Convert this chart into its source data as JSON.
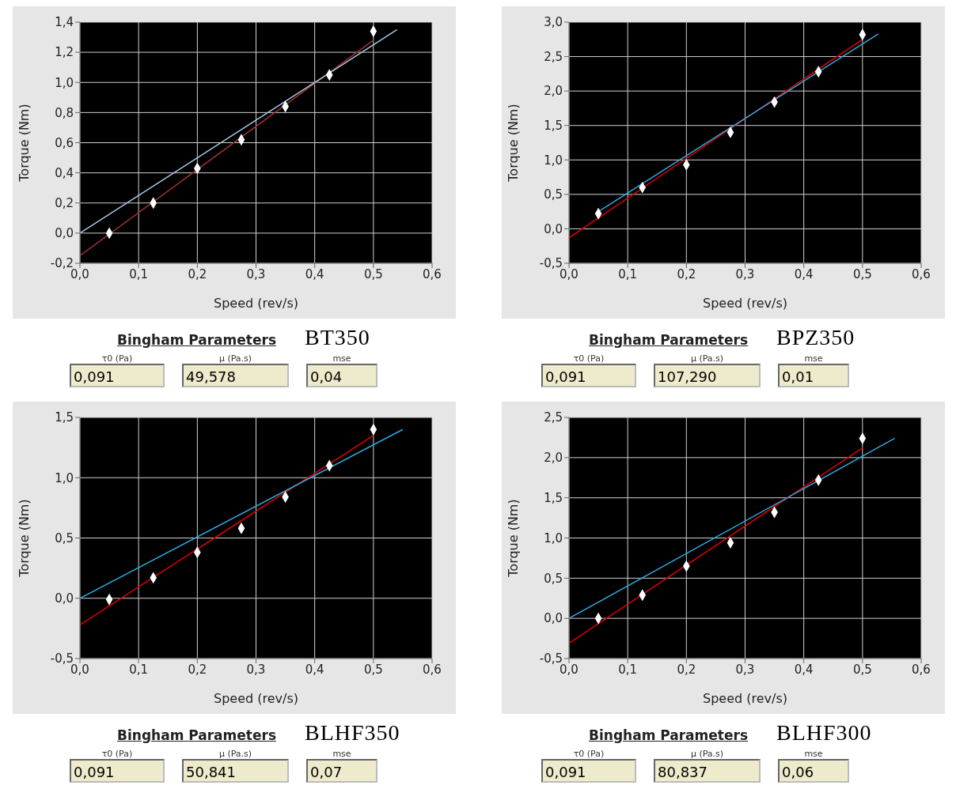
{
  "chart_data": [
    {
      "type": "scatter",
      "xlabel": "Speed (rev/s)",
      "ylabel": "Torque (Nm)",
      "xlim": [
        0,
        0.6
      ],
      "xticks": [
        {
          "value": 0,
          "label": "0,0"
        },
        {
          "value": 0.1,
          "label": "0,1"
        },
        {
          "value": 0.2,
          "label": "0,2"
        },
        {
          "value": 0.3,
          "label": "0,3"
        },
        {
          "value": 0.4,
          "label": "0,4"
        },
        {
          "value": 0.5,
          "label": "0,5"
        },
        {
          "value": 0.6,
          "label": "0,6"
        }
      ],
      "ylim": [
        -0.2,
        1.4
      ],
      "yticks": [
        {
          "value": -0.2,
          "label": "-0,2"
        },
        {
          "value": 0,
          "label": "0,0"
        },
        {
          "value": 0.2,
          "label": "0,2"
        },
        {
          "value": 0.4,
          "label": "0,4"
        },
        {
          "value": 0.6,
          "label": "0,6"
        },
        {
          "value": 0.8,
          "label": "0,8"
        },
        {
          "value": 1,
          "label": "1,0"
        },
        {
          "value": 1.2,
          "label": "1,2"
        },
        {
          "value": 1.4,
          "label": "1,4"
        }
      ],
      "grid": true,
      "series": [
        {
          "type": "line",
          "marker": "none",
          "color": "#a03030",
          "x": [
            0,
            0.5
          ],
          "values": [
            -0.15,
            1.28
          ]
        },
        {
          "type": "line",
          "marker": "none",
          "color": "#a8c8e8",
          "x": [
            0,
            0.54
          ],
          "values": [
            0,
            1.35
          ]
        },
        {
          "marker": "diamond",
          "color": "#ffffff",
          "x": [
            0.05,
            0.125,
            0.2,
            0.275,
            0.35,
            0.425,
            0.5
          ],
          "values": [
            0,
            0.2,
            0.43,
            0.62,
            0.84,
            1.05,
            1.34
          ]
        }
      ],
      "annotations": [
        "Bingham Parameters",
        "BT350",
        "τ0 (Pa)",
        "0,091",
        "µ (Pa.s)",
        "49,578",
        "mse",
        "0,04"
      ]
    },
    {
      "type": "scatter",
      "xlabel": "Speed (rev/s)",
      "ylabel": "Torque (Nm)",
      "xlim": [
        0,
        0.6
      ],
      "xticks": [
        {
          "value": 0,
          "label": "0,0"
        },
        {
          "value": 0.1,
          "label": "0,1"
        },
        {
          "value": 0.2,
          "label": "0,2"
        },
        {
          "value": 0.3,
          "label": "0,3"
        },
        {
          "value": 0.4,
          "label": "0,4"
        },
        {
          "value": 0.5,
          "label": "0,5"
        },
        {
          "value": 0.6,
          "label": "0,6"
        }
      ],
      "ylim": [
        -0.5,
        3
      ],
      "yticks": [
        {
          "value": -0.5,
          "label": "-0,5"
        },
        {
          "value": 0,
          "label": "0,0"
        },
        {
          "value": 0.5,
          "label": "0,5"
        },
        {
          "value": 1,
          "label": "1,0"
        },
        {
          "value": 1.5,
          "label": "1,5"
        },
        {
          "value": 2,
          "label": "2,0"
        },
        {
          "value": 2.5,
          "label": "2,5"
        },
        {
          "value": 3,
          "label": "3,0"
        }
      ],
      "grid": true,
      "series": [
        {
          "type": "line",
          "marker": "none",
          "color": "#e00000",
          "x": [
            0,
            0.5
          ],
          "values": [
            -0.13,
            2.75
          ]
        },
        {
          "type": "line",
          "marker": "none",
          "color": "#30a8e0",
          "x": [
            0.05,
            0.527
          ],
          "values": [
            0.25,
            2.83
          ]
        },
        {
          "marker": "diamond",
          "color": "#ffffff",
          "x": [
            0.05,
            0.125,
            0.2,
            0.275,
            0.35,
            0.425,
            0.5
          ],
          "values": [
            0.22,
            0.6,
            0.93,
            1.4,
            1.84,
            2.28,
            2.82
          ]
        }
      ],
      "annotations": [
        "Bingham Parameters",
        "BPZ350",
        "τ0 (Pa)",
        "0,091",
        "µ (Pa.s)",
        "107,290",
        "mse",
        "0,01"
      ]
    },
    {
      "type": "scatter",
      "xlabel": "Speed (rev/s)",
      "ylabel": "Torque (Nm)",
      "xlim": [
        0,
        0.6
      ],
      "xticks": [
        {
          "value": 0,
          "label": "0,0"
        },
        {
          "value": 0.1,
          "label": "0,1"
        },
        {
          "value": 0.2,
          "label": "0,2"
        },
        {
          "value": 0.3,
          "label": "0,3"
        },
        {
          "value": 0.4,
          "label": "0,4"
        },
        {
          "value": 0.5,
          "label": "0,5"
        },
        {
          "value": 0.6,
          "label": "0,6"
        }
      ],
      "ylim": [
        -0.5,
        1.5
      ],
      "yticks": [
        {
          "value": -0.5,
          "label": "-0,5"
        },
        {
          "value": 0,
          "label": "0,0"
        },
        {
          "value": 0.5,
          "label": "0,5"
        },
        {
          "value": 1,
          "label": "1,0"
        },
        {
          "value": 1.5,
          "label": "1,5"
        }
      ],
      "grid": true,
      "series": [
        {
          "type": "line",
          "marker": "none",
          "color": "#e00000",
          "x": [
            0,
            0.5
          ],
          "values": [
            -0.22,
            1.35
          ]
        },
        {
          "type": "line",
          "marker": "none",
          "color": "#30a8e0",
          "x": [
            0,
            0.55
          ],
          "values": [
            0,
            1.4
          ]
        },
        {
          "marker": "diamond",
          "color": "#ffffff",
          "x": [
            0.05,
            0.125,
            0.2,
            0.275,
            0.35,
            0.425,
            0.5
          ],
          "values": [
            -0.01,
            0.17,
            0.38,
            0.58,
            0.84,
            1.1,
            1.4
          ]
        }
      ],
      "annotations": [
        "Bingham Parameters",
        "BLHF350",
        "τ0 (Pa)",
        "0,091",
        "µ (Pa.s)",
        "50,841",
        "mse",
        "0,07"
      ]
    },
    {
      "type": "scatter",
      "xlabel": "Speed (rev/s)",
      "ylabel": "Torque (Nm)",
      "xlim": [
        0,
        0.6
      ],
      "xticks": [
        {
          "value": 0,
          "label": "0,0"
        },
        {
          "value": 0.1,
          "label": "0,1"
        },
        {
          "value": 0.2,
          "label": "0,2"
        },
        {
          "value": 0.3,
          "label": "0,3"
        },
        {
          "value": 0.4,
          "label": "0,4"
        },
        {
          "value": 0.5,
          "label": "0,5"
        },
        {
          "value": 0.6,
          "label": "0,6"
        }
      ],
      "ylim": [
        -0.5,
        2.5
      ],
      "yticks": [
        {
          "value": -0.5,
          "label": "-0,5"
        },
        {
          "value": 0,
          "label": "0,0"
        },
        {
          "value": 0.5,
          "label": "0,5"
        },
        {
          "value": 1,
          "label": "1,0"
        },
        {
          "value": 1.5,
          "label": "1,5"
        },
        {
          "value": 2,
          "label": "2,0"
        },
        {
          "value": 2.5,
          "label": "2,5"
        }
      ],
      "grid": true,
      "series": [
        {
          "type": "line",
          "marker": "none",
          "color": "#e00000",
          "x": [
            0,
            0.5
          ],
          "values": [
            -0.31,
            2.12
          ]
        },
        {
          "type": "line",
          "marker": "none",
          "color": "#30a8e0",
          "x": [
            0,
            0.555
          ],
          "values": [
            0,
            2.24
          ]
        },
        {
          "marker": "diamond",
          "color": "#ffffff",
          "x": [
            0.05,
            0.125,
            0.2,
            0.275,
            0.35,
            0.425,
            0.5
          ],
          "values": [
            0,
            0.29,
            0.65,
            0.94,
            1.32,
            1.72,
            2.24
          ]
        }
      ],
      "annotations": [
        "Bingham Parameters",
        "BLHF300",
        "τ0 (Pa)",
        "0,091",
        "µ (Pa.s)",
        "80,837",
        "mse",
        "0,06"
      ]
    }
  ]
}
